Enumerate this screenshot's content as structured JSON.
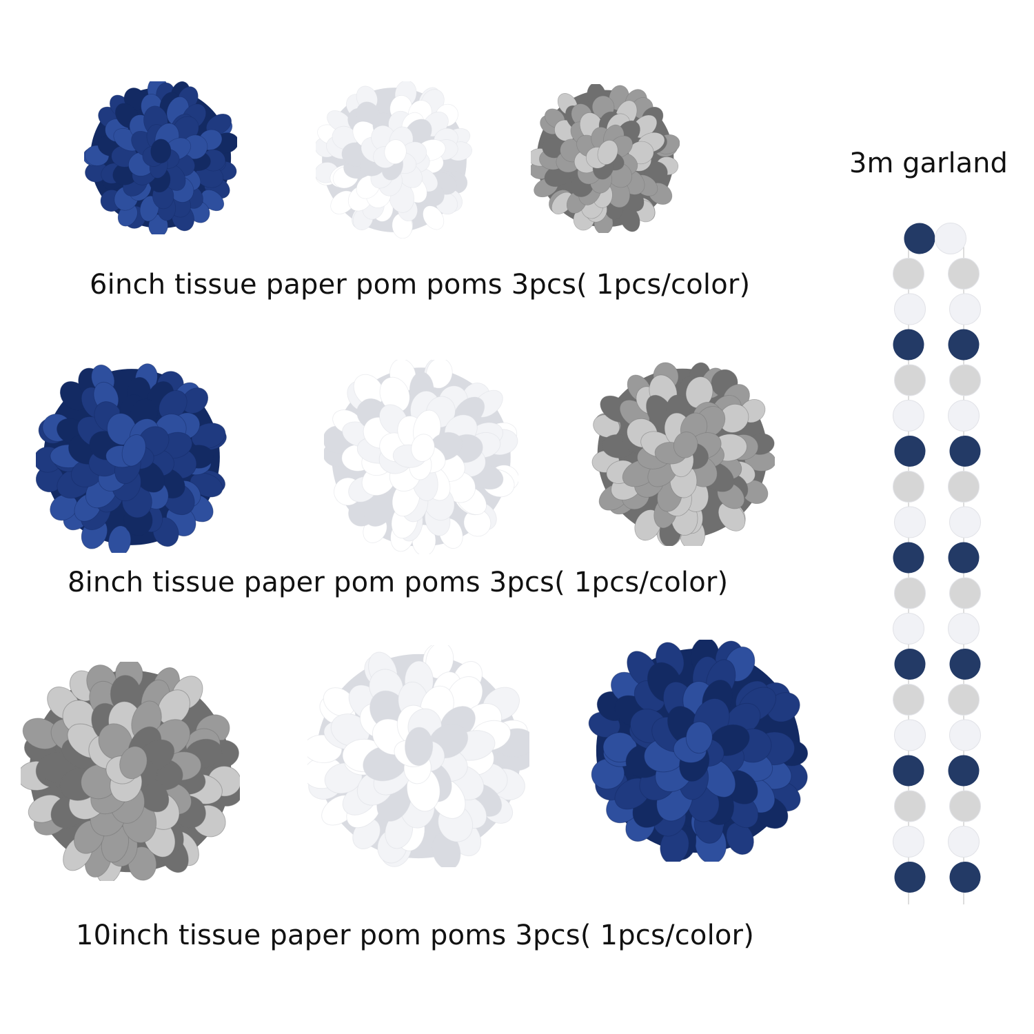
{
  "captions": {
    "row1": "6inch tissue paper pom poms 3pcs( 1pcs/color)",
    "row2": "8inch tissue paper pom poms 3pcs( 1pcs/color)",
    "row3": "10inch tissue paper pom poms 3pcs( 1pcs/color)"
  },
  "garland": {
    "label": "3m garland",
    "pattern": [
      "navy",
      "white",
      "silver",
      "white",
      "navy",
      "silver"
    ]
  },
  "colors": {
    "navy": "#1f3a80",
    "navy_dark": "#132a63",
    "white": "#f3f4f7",
    "white_shade": "#d9dbe1",
    "silver": "#9a9a9a",
    "silver_dark": "#6f6f6f",
    "silver_light": "#c9c9c9",
    "garland_navy": "#233a66",
    "garland_silver": "#d6d6d6",
    "garland_white": "#f1f2f6"
  },
  "pompoms": [
    {
      "row": 1,
      "color": "navy"
    },
    {
      "row": 1,
      "color": "white"
    },
    {
      "row": 1,
      "color": "silver"
    },
    {
      "row": 2,
      "color": "navy"
    },
    {
      "row": 2,
      "color": "white"
    },
    {
      "row": 2,
      "color": "silver"
    },
    {
      "row": 3,
      "color": "silver"
    },
    {
      "row": 3,
      "color": "white"
    },
    {
      "row": 3,
      "color": "navy"
    }
  ]
}
